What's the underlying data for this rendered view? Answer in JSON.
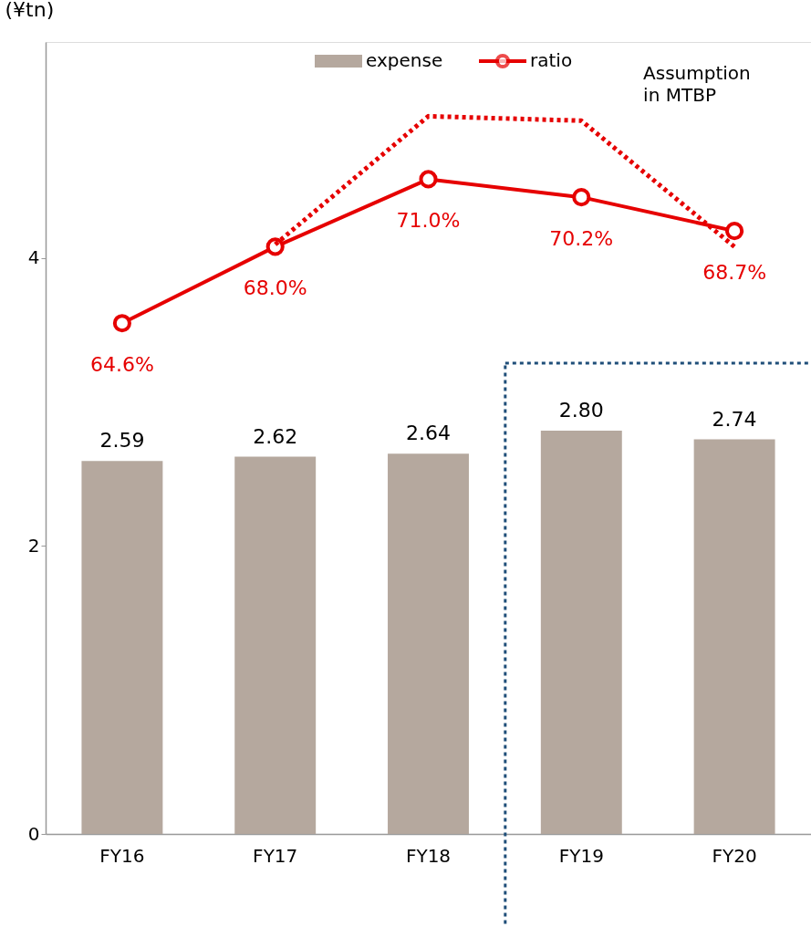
{
  "chart_data": {
    "type": "bar",
    "ylabel": "(¥tn)",
    "categories": [
      "FY16",
      "FY17",
      "FY18",
      "FY19",
      "FY20"
    ],
    "series": [
      {
        "name": "expense",
        "color": "#b5a89e",
        "values": [
          2.59,
          2.62,
          2.64,
          2.8,
          2.74
        ],
        "value_labels": [
          "2.59",
          "2.62",
          "2.64",
          "2.80",
          "2.74"
        ]
      },
      {
        "name": "ratio",
        "type": "line",
        "axis": "y2",
        "color": "#e60000",
        "marker": "circle",
        "values": [
          64.6,
          68.0,
          71.0,
          70.2,
          68.7
        ],
        "value_labels": [
          "64.6%",
          "68.0%",
          "71.0%",
          "70.2%",
          "68.7%"
        ]
      },
      {
        "name": "Assumption in MTBP",
        "type": "line",
        "axis": "y2",
        "color": "#e60000",
        "line_style": "dotted",
        "marker": "none",
        "values": [
          null,
          68.1,
          73.8,
          73.6,
          68.0
        ]
      }
    ],
    "ylim": [
      0,
      5.5
    ],
    "yticks": [
      0,
      2,
      4
    ],
    "y2lim": [
      41.9,
      77.1
    ],
    "legend": "top",
    "grid": false
  }
}
